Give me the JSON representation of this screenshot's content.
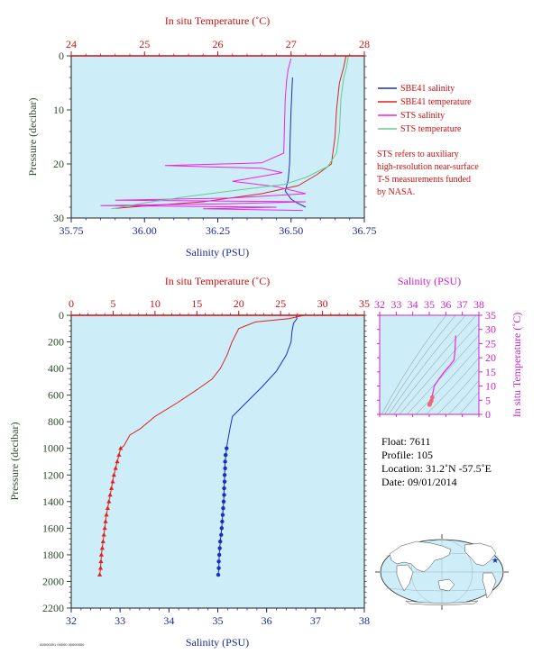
{
  "colors": {
    "plot_bg": "#cdeef8",
    "sbe41_salinity": "#1a2fc0",
    "sbe41_temperature": "#dd2222",
    "sts_salinity": "#ee22ee",
    "sts_temperature": "#66cc88",
    "temp_axis": "#cc1111",
    "sal_axis": "#1a2a99",
    "pressure_axis": "#2c4a2c",
    "inset_axis": "#cc22cc",
    "land": "#ffffff",
    "ocean": "#cdeef8"
  },
  "legend": {
    "items": [
      "SBE41 salinity",
      "SBE41 temperature",
      "STS salinity",
      "STS temperature"
    ]
  },
  "note": {
    "lines": [
      "STS refers to auxiliary",
      "high-resolution near-surface",
      "T-S measurements funded",
      "by NASA."
    ]
  },
  "info": {
    "float": "Float:  7611",
    "profile": "Profile:  105",
    "location": "Location:  31.2˚N  -57.5˚E",
    "date": "Date:  09/01/2014"
  },
  "footer_text": "A0000001 00000 00000000",
  "chart_data": [
    {
      "type": "line",
      "x_top_label": "In situ Temperature (˚C)",
      "x_top_ticks": [
        "24",
        "25",
        "26",
        "27",
        "28"
      ],
      "x_top_lim": [
        24,
        28
      ],
      "x_bottom_label": "Salinity (PSU)",
      "x_bottom_ticks": [
        "35.75",
        "36.00",
        "36.25",
        "36.50",
        "36.75"
      ],
      "x_bottom_lim": [
        35.75,
        36.75
      ],
      "ylabel": "Pressure (decibar)",
      "y_ticks": [
        "0",
        "10",
        "20",
        "30"
      ],
      "ylim": [
        0,
        30
      ],
      "y_inverted": true,
      "series": [
        {
          "name": "SBE41 salinity",
          "axis": "salinity",
          "points": [
            [
              36.505,
              4
            ],
            [
              36.5,
              10
            ],
            [
              36.497,
              15
            ],
            [
              36.495,
              20
            ],
            [
              36.49,
              23
            ],
            [
              36.48,
              25
            ],
            [
              36.5,
              26.5
            ],
            [
              36.52,
              27.2
            ],
            [
              36.55,
              28
            ]
          ]
        },
        {
          "name": "SBE41 temperature",
          "axis": "temperature",
          "points": [
            [
              27.75,
              0
            ],
            [
              27.72,
              2
            ],
            [
              27.66,
              5
            ],
            [
              27.62,
              10
            ],
            [
              27.6,
              15
            ],
            [
              27.55,
              20
            ],
            [
              27.35,
              22
            ],
            [
              27.1,
              24
            ],
            [
              26.6,
              25.5
            ],
            [
              25.8,
              27
            ],
            [
              25.0,
              27.8
            ],
            [
              24.6,
              28.2
            ]
          ]
        },
        {
          "name": "STS salinity",
          "axis": "salinity",
          "points": [
            [
              36.5,
              0.5
            ],
            [
              36.49,
              2.5
            ],
            [
              36.485,
              4.5
            ],
            [
              36.48,
              8
            ],
            [
              36.478,
              12
            ],
            [
              36.475,
              18
            ],
            [
              36.4,
              19.8
            ],
            [
              36.07,
              20.3
            ],
            [
              36.4,
              20.8
            ],
            [
              36.47,
              21.6
            ],
            [
              36.4,
              22.3
            ],
            [
              36.3,
              23.2
            ],
            [
              36.45,
              24.2
            ],
            [
              36.55,
              25.5
            ],
            [
              36.3,
              26.3
            ],
            [
              35.9,
              26.7
            ],
            [
              36.55,
              27
            ],
            [
              36.25,
              27.4
            ],
            [
              35.85,
              27.7
            ],
            [
              36.45,
              28
            ],
            [
              36.2,
              28.3
            ],
            [
              36.54,
              28.6
            ]
          ]
        },
        {
          "name": "STS temperature",
          "axis": "temperature",
          "points": [
            [
              27.78,
              0
            ],
            [
              27.76,
              2
            ],
            [
              27.72,
              4
            ],
            [
              27.68,
              8
            ],
            [
              27.66,
              14
            ],
            [
              27.62,
              18
            ],
            [
              27.5,
              20.5
            ],
            [
              27.2,
              22.5
            ],
            [
              26.9,
              23.8
            ],
            [
              26.3,
              24.8
            ],
            [
              25.6,
              26
            ],
            [
              25.0,
              27.2
            ],
            [
              24.55,
              28.3
            ]
          ]
        }
      ]
    },
    {
      "type": "line",
      "x_top_label": "In situ Temperature (˚C)",
      "x_top_ticks": [
        "0",
        "5",
        "10",
        "15",
        "20",
        "25",
        "30",
        "35"
      ],
      "x_top_lim": [
        0,
        35
      ],
      "x_bottom_label": "Salinity (PSU)",
      "x_bottom_ticks": [
        "32",
        "33",
        "34",
        "35",
        "36",
        "37",
        "38"
      ],
      "x_bottom_lim": [
        32,
        38
      ],
      "ylabel": "Pressure (decibar)",
      "y_ticks": [
        "0",
        "200",
        "400",
        "600",
        "800",
        "1000",
        "1200",
        "1400",
        "1600",
        "1800",
        "2000",
        "2200"
      ],
      "ylim": [
        0,
        2200
      ],
      "y_inverted": true,
      "series": [
        {
          "name": "SBE41 salinity",
          "axis": "salinity",
          "points": [
            [
              36.6,
              0
            ],
            [
              36.62,
              25
            ],
            [
              36.55,
              60
            ],
            [
              36.52,
              120
            ],
            [
              36.5,
              200
            ],
            [
              36.4,
              300
            ],
            [
              36.2,
              420
            ],
            [
              35.9,
              540
            ],
            [
              35.6,
              650
            ],
            [
              35.3,
              760
            ],
            [
              35.25,
              850
            ],
            [
              35.2,
              950
            ],
            [
              35.18,
              1000
            ],
            [
              35.15,
              1100
            ],
            [
              35.14,
              1200
            ],
            [
              35.13,
              1300
            ],
            [
              35.12,
              1400
            ],
            [
              35.1,
              1500
            ],
            [
              35.08,
              1600
            ],
            [
              35.05,
              1700
            ],
            [
              35.03,
              1800
            ],
            [
              35.02,
              1900
            ],
            [
              35.01,
              1950
            ]
          ]
        },
        {
          "name": "SBE41 temperature",
          "axis": "temperature",
          "points": [
            [
              27.8,
              0
            ],
            [
              26,
              25
            ],
            [
              22,
              50
            ],
            [
              20,
              100
            ],
            [
              19.2,
              200
            ],
            [
              18.6,
              300
            ],
            [
              17.8,
              400
            ],
            [
              16.8,
              480
            ],
            [
              15,
              560
            ],
            [
              12.6,
              660
            ],
            [
              10,
              760
            ],
            [
              8.3,
              850
            ],
            [
              7,
              900
            ],
            [
              6.3,
              980
            ],
            [
              5.9,
              1000
            ],
            [
              5.5,
              1100
            ],
            [
              5.1,
              1200
            ],
            [
              4.8,
              1300
            ],
            [
              4.5,
              1400
            ],
            [
              4.2,
              1500
            ],
            [
              4,
              1600
            ],
            [
              3.8,
              1700
            ],
            [
              3.6,
              1800
            ],
            [
              3.5,
              1900
            ],
            [
              3.4,
              1950
            ]
          ]
        },
        {
          "name": "SBE41 salinity samples",
          "axis": "salinity",
          "markers": "circle",
          "points": [
            [
              35.18,
              1000
            ],
            [
              35.16,
              1050
            ],
            [
              35.15,
              1100
            ],
            [
              35.15,
              1150
            ],
            [
              35.14,
              1200
            ],
            [
              35.14,
              1250
            ],
            [
              35.13,
              1300
            ],
            [
              35.13,
              1350
            ],
            [
              35.12,
              1400
            ],
            [
              35.11,
              1450
            ],
            [
              35.1,
              1500
            ],
            [
              35.09,
              1550
            ],
            [
              35.08,
              1600
            ],
            [
              35.07,
              1650
            ],
            [
              35.05,
              1700
            ],
            [
              35.04,
              1750
            ],
            [
              35.03,
              1800
            ],
            [
              35.02,
              1850
            ],
            [
              35.02,
              1900
            ],
            [
              35.01,
              1950
            ]
          ]
        },
        {
          "name": "SBE41 temperature samples",
          "axis": "temperature",
          "markers": "triangle",
          "points": [
            [
              5.9,
              1000
            ],
            [
              5.7,
              1050
            ],
            [
              5.5,
              1100
            ],
            [
              5.3,
              1150
            ],
            [
              5.1,
              1200
            ],
            [
              4.95,
              1250
            ],
            [
              4.8,
              1300
            ],
            [
              4.65,
              1350
            ],
            [
              4.5,
              1400
            ],
            [
              4.35,
              1450
            ],
            [
              4.2,
              1500
            ],
            [
              4.1,
              1550
            ],
            [
              4,
              1600
            ],
            [
              3.9,
              1650
            ],
            [
              3.8,
              1700
            ],
            [
              3.7,
              1750
            ],
            [
              3.6,
              1800
            ],
            [
              3.55,
              1850
            ],
            [
              3.5,
              1900
            ],
            [
              3.4,
              1950
            ]
          ]
        }
      ]
    },
    {
      "type": "scatter",
      "x_top_label": "Salinity (PSU)",
      "x_top_ticks": [
        "32",
        "33",
        "34",
        "35",
        "36",
        "37",
        "38"
      ],
      "x_lim": [
        32,
        38
      ],
      "ylabel": "In situ Temperature (˚C)",
      "y_ticks": [
        "0",
        "5",
        "10",
        "15",
        "20",
        "25",
        "30",
        "35"
      ],
      "ylim": [
        0,
        35
      ],
      "series": [
        {
          "axis": "ts",
          "points": [
            [
              36.6,
              27.8
            ],
            [
              36.55,
              22
            ],
            [
              36.5,
              19.2
            ],
            [
              36.2,
              17
            ],
            [
              35.9,
              15
            ],
            [
              35.6,
              12.6
            ],
            [
              35.3,
              10
            ],
            [
              35.2,
              7
            ],
            [
              35.18,
              6
            ],
            [
              35.13,
              4.8
            ],
            [
              35.05,
              3.8
            ],
            [
              35.01,
              3.4
            ]
          ]
        }
      ]
    }
  ]
}
